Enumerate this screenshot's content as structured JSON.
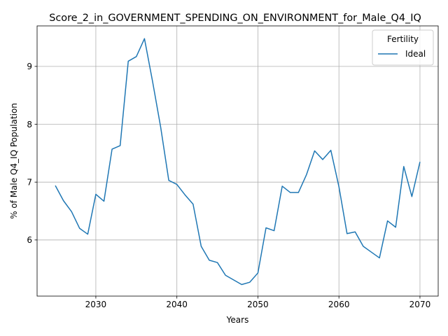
{
  "chart_data": {
    "type": "line",
    "title": "Score_2_in_GOVERNMENT_SPENDING_ON_ENVIRONMENT_for_Male_Q4_IQ",
    "xlabel": "Years",
    "ylabel": "% of Male Q4_IQ Population",
    "xlim": [
      2022.75,
      2072.25
    ],
    "ylim": [
      5.03,
      9.7
    ],
    "xticks": [
      2030,
      2040,
      2050,
      2060,
      2070
    ],
    "xtick_labels": [
      "2030",
      "2040",
      "2050",
      "2060",
      "2070"
    ],
    "yticks": [
      6,
      7,
      8,
      9
    ],
    "ytick_labels": [
      "6",
      "7",
      "8",
      "9"
    ],
    "grid": true,
    "legend": {
      "title": "Fertility",
      "placement": "top-right",
      "entries": [
        "Ideal"
      ]
    },
    "series": [
      {
        "name": "Ideal",
        "color": "#1f77b4",
        "x": [
          2025,
          2026,
          2027,
          2028,
          2029,
          2030,
          2031,
          2032,
          2033,
          2034,
          2035,
          2036,
          2037,
          2038,
          2039,
          2040,
          2041,
          2042,
          2043,
          2044,
          2045,
          2046,
          2047,
          2048,
          2049,
          2050,
          2051,
          2052,
          2053,
          2054,
          2055,
          2056,
          2057,
          2058,
          2059,
          2060,
          2061,
          2062,
          2063,
          2064,
          2065,
          2066,
          2067,
          2068,
          2069,
          2070
        ],
        "y": [
          6.94,
          6.68,
          6.49,
          6.2,
          6.1,
          6.79,
          6.67,
          7.57,
          7.63,
          9.09,
          9.17,
          9.48,
          8.74,
          7.95,
          7.03,
          6.96,
          6.78,
          6.62,
          5.89,
          5.65,
          5.61,
          5.39,
          5.31,
          5.23,
          5.27,
          5.43,
          6.21,
          6.16,
          6.93,
          6.82,
          6.82,
          7.13,
          7.54,
          7.39,
          7.55,
          6.92,
          6.11,
          6.14,
          5.89,
          5.79,
          5.69,
          6.33,
          6.22,
          7.27,
          6.75,
          7.35
        ]
      }
    ]
  }
}
